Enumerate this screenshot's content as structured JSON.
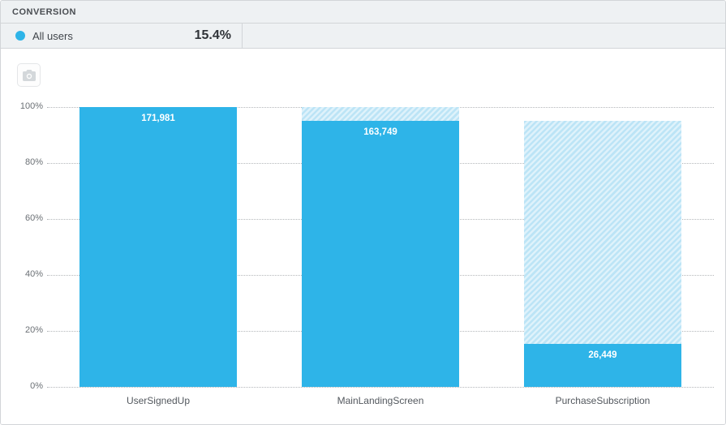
{
  "header": {
    "title": "CONVERSION"
  },
  "legend": {
    "series_label": "All users",
    "conversion_value": "15.4%",
    "dot_color": "#2eb4e8"
  },
  "chart_data": {
    "type": "bar",
    "subtype": "funnel",
    "title": "Conversion funnel",
    "categories": [
      "UserSignedUp",
      "MainLandingScreen",
      "PurchaseSubscription"
    ],
    "series": [
      {
        "name": "All users",
        "counts": [
          171981,
          163749,
          26449
        ],
        "count_labels": [
          "171,981",
          "163,749",
          "26,449"
        ],
        "percent_of_first": [
          100,
          95.2,
          15.4
        ]
      }
    ],
    "overall_conversion_percent": 15.4,
    "yticks": [
      0,
      20,
      40,
      60,
      80,
      100
    ],
    "ytick_labels": [
      "0%",
      "20%",
      "40%",
      "60%",
      "80%",
      "100%"
    ],
    "ylim": [
      0,
      100
    ],
    "grid": "dotted-horizontal",
    "legend_position": "top-left",
    "bar_color": "#2eb4e8",
    "dropoff_hatch_colors": [
      "#bce4f6",
      "#def2fb"
    ],
    "value_label_color": "#ffffff"
  }
}
